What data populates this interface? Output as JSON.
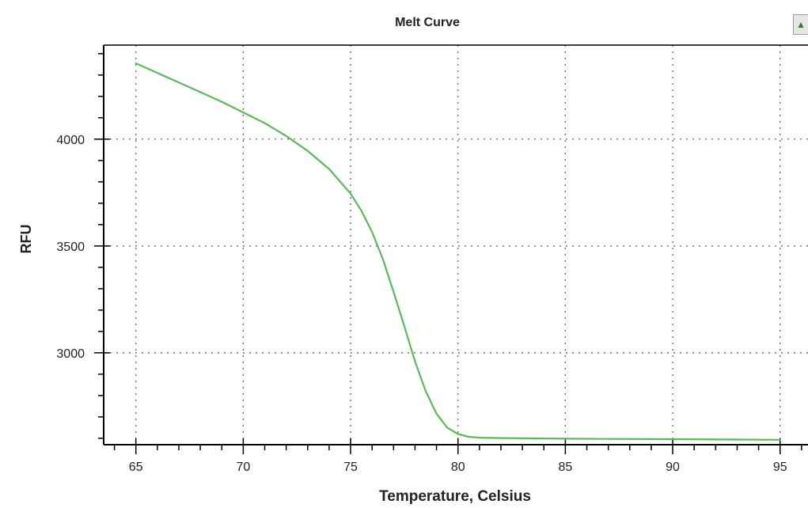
{
  "chart_data": {
    "type": "line",
    "title": "Melt Curve",
    "xlabel": "Temperature, Celsius",
    "ylabel": "RFU",
    "xlim": [
      63.5,
      96.3
    ],
    "ylim": [
      2570,
      4440
    ],
    "x_ticks": [
      65,
      70,
      75,
      80,
      85,
      90,
      95
    ],
    "y_ticks": [
      3000,
      3500,
      4000
    ],
    "grid": true,
    "legend": "none",
    "series": [
      {
        "color": "#5cb85c",
        "x": [
          65,
          66,
          67,
          68,
          69,
          70,
          71,
          72,
          73,
          74,
          75,
          75.5,
          76,
          76.5,
          77,
          77.5,
          78,
          78.5,
          79,
          79.5,
          80,
          80.5,
          81,
          82,
          83,
          85,
          87,
          90,
          93,
          95
        ],
        "y": [
          4355,
          4310,
          4265,
          4220,
          4175,
          4125,
          4075,
          4015,
          3945,
          3860,
          3745,
          3665,
          3565,
          3440,
          3285,
          3125,
          2960,
          2820,
          2715,
          2650,
          2620,
          2607,
          2603,
          2601,
          2600,
          2598,
          2597,
          2596,
          2594,
          2593
        ]
      }
    ]
  },
  "ui": {
    "corner_button_glyph": "▲"
  }
}
